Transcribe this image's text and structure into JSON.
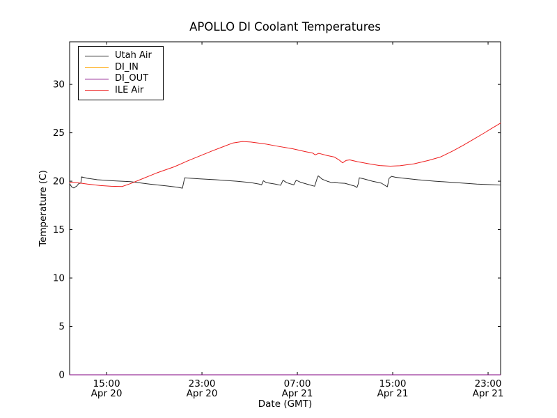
{
  "chart_data": {
    "type": "line",
    "title": "APOLLO DI Coolant Temperatures",
    "xlabel": "Date (GMT)",
    "ylabel": "Temperature (C)",
    "grid": false,
    "legend_position": "upper left",
    "x_unit": "hours since Apr 20 00:00 GMT",
    "xlim": [
      11.9,
      48.05
    ],
    "ylim": [
      0,
      34.4
    ],
    "xticks": {
      "values": [
        15,
        23,
        31,
        39,
        47
      ],
      "labels": [
        [
          "15:00",
          "Apr 20"
        ],
        [
          "23:00",
          "Apr 20"
        ],
        [
          "07:00",
          "Apr 21"
        ],
        [
          "15:00",
          "Apr 21"
        ],
        [
          "23:00",
          "Apr 21"
        ]
      ]
    },
    "yticks": {
      "values": [
        0,
        5,
        10,
        15,
        20,
        25,
        30
      ],
      "labels": [
        "0",
        "5",
        "10",
        "15",
        "20",
        "25",
        "30"
      ]
    },
    "series": [
      {
        "name": "Utah Air",
        "color": "#2b2b2b",
        "points": [
          [
            11.9,
            19.75
          ],
          [
            12.08,
            19.4
          ],
          [
            12.25,
            19.3
          ],
          [
            12.5,
            19.5
          ],
          [
            12.66,
            19.75
          ],
          [
            12.84,
            19.8
          ],
          [
            12.9,
            20.45
          ],
          [
            13.37,
            20.3
          ],
          [
            14.24,
            20.15
          ],
          [
            15.4,
            20.05
          ],
          [
            17.0,
            19.95
          ],
          [
            18.6,
            19.7
          ],
          [
            20.1,
            19.5
          ],
          [
            20.95,
            19.38
          ],
          [
            21.36,
            19.28
          ],
          [
            21.55,
            20.35
          ],
          [
            22.7,
            20.25
          ],
          [
            24.15,
            20.15
          ],
          [
            25.9,
            20.0
          ],
          [
            27.1,
            19.85
          ],
          [
            27.8,
            19.7
          ],
          [
            28.0,
            19.62
          ],
          [
            28.15,
            20.05
          ],
          [
            28.4,
            19.85
          ],
          [
            29.15,
            19.7
          ],
          [
            29.6,
            19.58
          ],
          [
            29.8,
            20.1
          ],
          [
            30.1,
            19.85
          ],
          [
            30.7,
            19.62
          ],
          [
            30.9,
            20.1
          ],
          [
            31.25,
            19.9
          ],
          [
            31.95,
            19.65
          ],
          [
            32.45,
            19.48
          ],
          [
            32.65,
            20.25
          ],
          [
            32.75,
            20.55
          ],
          [
            33.1,
            20.2
          ],
          [
            33.5,
            20.0
          ],
          [
            33.9,
            19.85
          ],
          [
            34.15,
            19.9
          ],
          [
            34.45,
            19.82
          ],
          [
            35.0,
            19.78
          ],
          [
            35.5,
            19.6
          ],
          [
            35.8,
            19.5
          ],
          [
            36.0,
            19.35
          ],
          [
            36.1,
            19.7
          ],
          [
            36.2,
            20.35
          ],
          [
            36.55,
            20.25
          ],
          [
            37.3,
            20.0
          ],
          [
            38.05,
            19.8
          ],
          [
            38.55,
            19.42
          ],
          [
            38.7,
            20.3
          ],
          [
            38.9,
            20.5
          ],
          [
            39.25,
            20.4
          ],
          [
            39.95,
            20.3
          ],
          [
            41.1,
            20.15
          ],
          [
            42.55,
            20.0
          ],
          [
            44.3,
            19.85
          ],
          [
            46.05,
            19.7
          ],
          [
            48.05,
            19.6
          ]
        ]
      },
      {
        "name": "DI_IN",
        "color": "#ffa500",
        "points": [
          [
            11.9,
            0
          ],
          [
            48.05,
            0
          ]
        ]
      },
      {
        "name": "DI_OUT",
        "color": "#800080",
        "points": [
          [
            11.9,
            0
          ],
          [
            48.05,
            0
          ]
        ]
      },
      {
        "name": "ILE Air",
        "color": "#ee1c1c",
        "points": [
          [
            11.9,
            19.9
          ],
          [
            12.5,
            19.85
          ],
          [
            13.4,
            19.7
          ],
          [
            14.5,
            19.55
          ],
          [
            15.4,
            19.48
          ],
          [
            16.3,
            19.45
          ],
          [
            17.0,
            19.75
          ],
          [
            18.0,
            20.25
          ],
          [
            19.2,
            20.85
          ],
          [
            20.7,
            21.5
          ],
          [
            21.8,
            22.1
          ],
          [
            23.0,
            22.7
          ],
          [
            23.9,
            23.15
          ],
          [
            24.75,
            23.55
          ],
          [
            25.6,
            23.95
          ],
          [
            26.4,
            24.1
          ],
          [
            27.1,
            24.05
          ],
          [
            28.3,
            23.85
          ],
          [
            29.4,
            23.6
          ],
          [
            30.6,
            23.35
          ],
          [
            31.7,
            23.05
          ],
          [
            32.3,
            22.9
          ],
          [
            32.5,
            22.72
          ],
          [
            32.8,
            22.88
          ],
          [
            33.5,
            22.65
          ],
          [
            34.1,
            22.5
          ],
          [
            34.55,
            22.15
          ],
          [
            34.8,
            21.9
          ],
          [
            35.1,
            22.15
          ],
          [
            35.4,
            22.2
          ],
          [
            36.1,
            22.0
          ],
          [
            37.0,
            21.8
          ],
          [
            37.9,
            21.62
          ],
          [
            38.8,
            21.55
          ],
          [
            39.6,
            21.6
          ],
          [
            40.8,
            21.8
          ],
          [
            42.0,
            22.15
          ],
          [
            43.0,
            22.5
          ],
          [
            44.0,
            23.1
          ],
          [
            44.9,
            23.7
          ],
          [
            45.8,
            24.35
          ],
          [
            46.7,
            25.0
          ],
          [
            47.3,
            25.45
          ],
          [
            48.05,
            26.0
          ]
        ]
      }
    ]
  }
}
